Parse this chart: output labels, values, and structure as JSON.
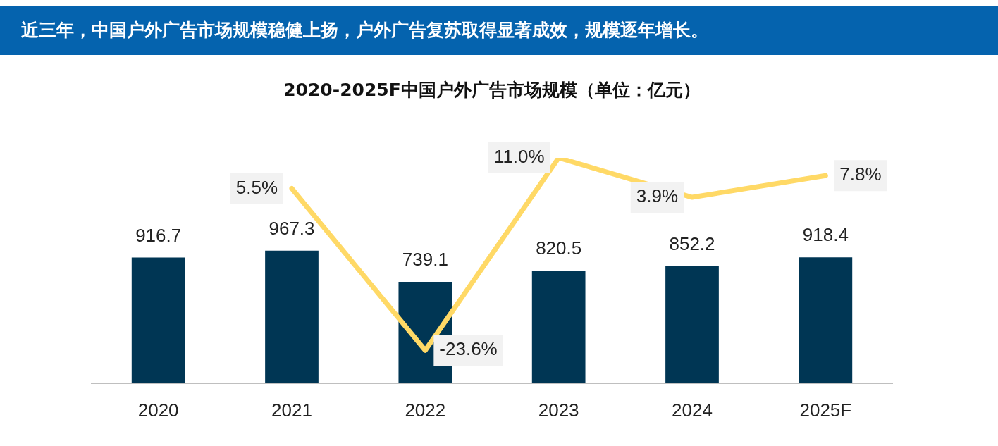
{
  "chart_data": {
    "type": "bar",
    "title": "近三年，中国户外广告市场规模稳健上扬，户外广告复苏取得显著成效，规模逐年增长。",
    "subtitle": "2020-2025F中国户外广告市场规模（单位：亿元）",
    "categories": [
      "2020",
      "2021",
      "2022",
      "2023",
      "2024",
      "2025F"
    ],
    "series": [
      {
        "color": "#003654",
        "values": [
          916.7,
          967.3,
          739.1,
          820.5,
          852.2,
          918.4
        ]
      },
      {
        "type": "line",
        "axis": "y2",
        "color": "#ffd966",
        "values": [
          null,
          5.5,
          -23.6,
          11.0,
          3.9,
          7.8
        ],
        "value_labels": [
          null,
          "5.5%",
          "-23.6%",
          "11.0%",
          "3.9%",
          "7.8%"
        ]
      }
    ],
    "data_labels": true,
    "legend": false,
    "grid": false,
    "marker": "none"
  }
}
